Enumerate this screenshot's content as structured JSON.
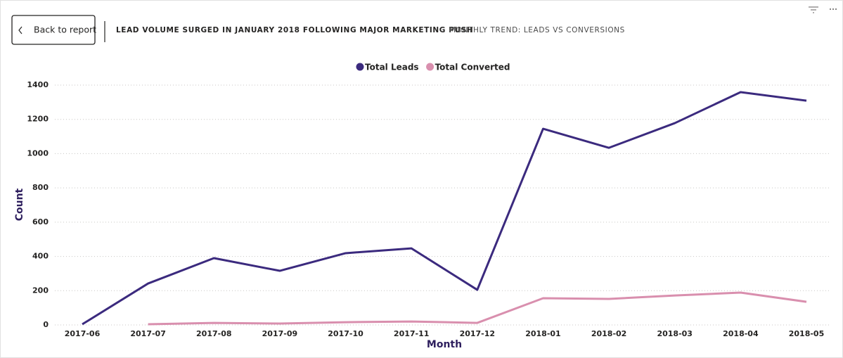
{
  "ui": {
    "back_button": "Back to report",
    "header_title": "LEAD VOLUME SURGED IN JANUARY 2018 FOLLOWING MAJOR MARKETING PUSH",
    "header_subtitle": "MONTHLY TREND: LEADS VS CONVERSIONS"
  },
  "chart_data": {
    "type": "line",
    "x_label": "Month",
    "y_label": "Count",
    "categories": [
      "2017-06",
      "2017-07",
      "2017-08",
      "2017-09",
      "2017-10",
      "2017-11",
      "2017-12",
      "2018-01",
      "2018-02",
      "2018-03",
      "2018-04",
      "2018-05"
    ],
    "series": [
      {
        "name": "Total Leads",
        "color": "#3b2a7e",
        "values": [
          4,
          242,
          390,
          316,
          419,
          447,
          205,
          1145,
          1034,
          1178,
          1359,
          1309
        ]
      },
      {
        "name": "Total Converted",
        "color": "#d98fae",
        "values": [
          null,
          4,
          12,
          8,
          16,
          20,
          12,
          156,
          152,
          172,
          189,
          135
        ]
      }
    ],
    "ylim": [
      0,
      1400
    ],
    "yticks": [
      0,
      200,
      400,
      600,
      800,
      1000,
      1200,
      1400
    ],
    "grid": true,
    "legend": "top"
  }
}
